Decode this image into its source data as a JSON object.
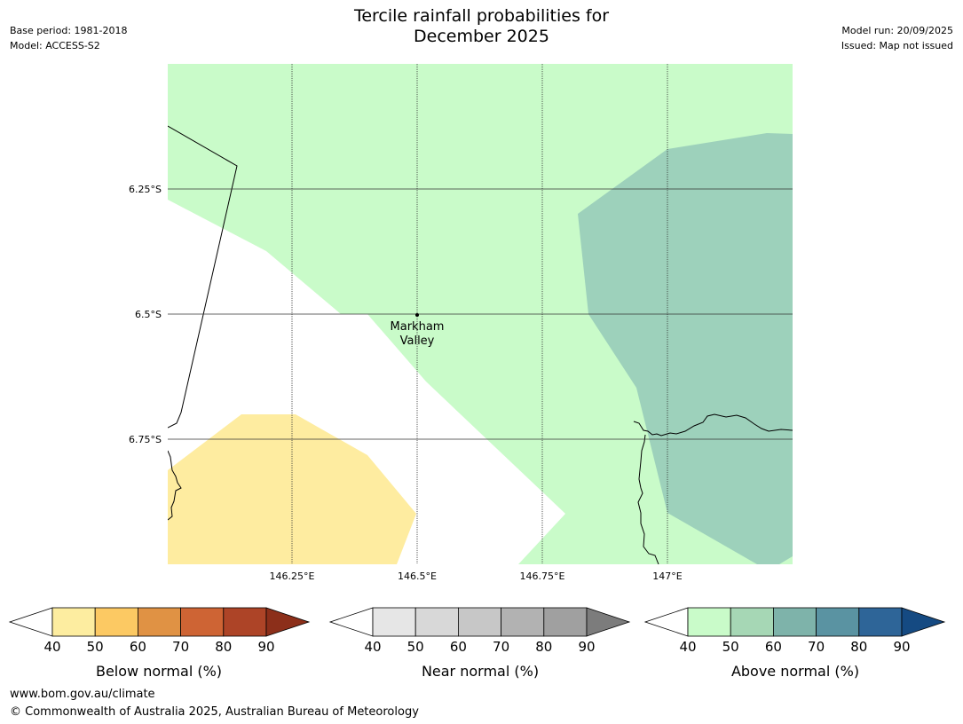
{
  "header": {
    "title_line1": "Tercile rainfall probabilities for",
    "title_line2": "December 2025",
    "base_period": "Base period: 1981-2018",
    "model": "Model: ACCESS-S2",
    "model_run": "Model run: 20/09/2025",
    "issued": "Issued: Map not issued"
  },
  "map": {
    "lat_labels": [
      "6.25°S",
      "6.5°S",
      "6.75°S"
    ],
    "lon_labels": [
      "146.25°E",
      "146.5°E",
      "146.75°E",
      "147°E"
    ],
    "town": {
      "line1": "Markham",
      "line2": "Valley"
    }
  },
  "colors": {
    "below": [
      "#fdeda0",
      "#fcc963",
      "#e09244",
      "#ce6434",
      "#ad4427",
      "#8c2f1a"
    ],
    "near": [
      "#e6e6e6",
      "#d8d8d8",
      "#c7c7c7",
      "#b2b2b2",
      "#a0a0a0",
      "#7c7c7c"
    ],
    "above": [
      "#c9fbc9",
      "#a6d7b5",
      "#7eb3aa",
      "#5a93a2",
      "#2e6598",
      "#154a82"
    ],
    "map_above_50": "#c9fbc9",
    "map_above_60": "#9dd1bb",
    "map_below_50": "#feeca0"
  },
  "colorbars": {
    "ticks": [
      "40",
      "50",
      "60",
      "70",
      "80",
      "90"
    ],
    "below_label": "Below normal (%)",
    "near_label": "Near normal (%)",
    "above_label": "Above normal (%)"
  },
  "footer": {
    "url": "www.bom.gov.au/climate",
    "copyright": "© Commonwealth of Australia 2025, Australian Bureau of Meteorology"
  }
}
